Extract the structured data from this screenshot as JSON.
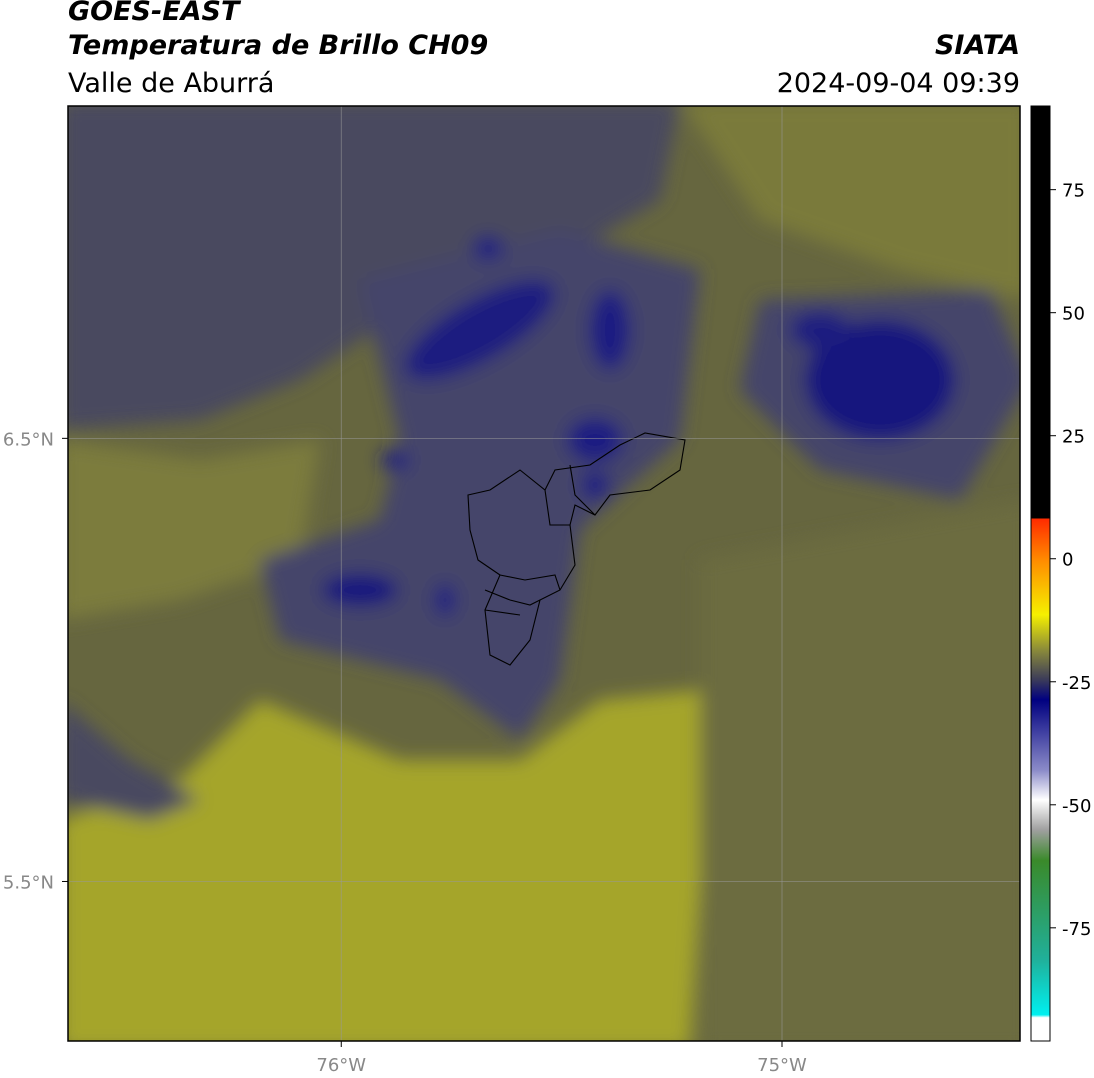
{
  "header": {
    "title": "GOES-EAST",
    "subtitle": "Temperatura de Brillo CH09",
    "region": "Valle de Aburrá",
    "source": "SIATA",
    "datetime": "2024-09-04 09:39"
  },
  "map": {
    "xlim": [
      -76.62,
      -74.46
    ],
    "ylim": [
      5.14,
      7.25
    ],
    "xticks": [
      {
        "value": -76,
        "label": "76°W"
      },
      {
        "value": -75,
        "label": "75°W"
      }
    ],
    "yticks": [
      {
        "value": 6.5,
        "label": "6.5°N"
      },
      {
        "value": 5.5,
        "label": "5.5°N"
      }
    ],
    "grid": true
  },
  "colorbar": {
    "lim": [
      -98,
      92
    ],
    "ticks": [
      75,
      50,
      25,
      0,
      -25,
      -50,
      -75
    ]
  }
}
